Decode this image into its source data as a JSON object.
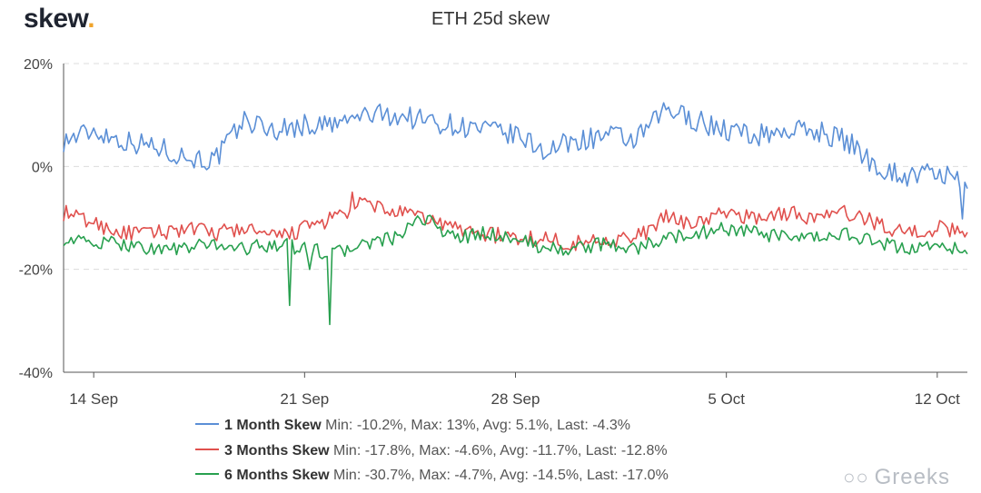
{
  "brand": {
    "logo_text": "skew",
    "logo_dot": "."
  },
  "watermark": {
    "text": "Greeks",
    "icon": "wechat-icon"
  },
  "chart_data": {
    "type": "line",
    "title": "ETH 25d skew",
    "xlabel": "",
    "ylabel": "",
    "x_range": [
      "2020-09-13",
      "2020-10-13"
    ],
    "ylim": [
      -40,
      20
    ],
    "y_ticks": [
      "20%",
      "0%",
      "-20%",
      "-40%"
    ],
    "y_tick_values": [
      20,
      0,
      -20,
      -40
    ],
    "x_ticks": [
      "14 Sep",
      "21 Sep",
      "28 Sep",
      "5 Oct",
      "12 Oct"
    ],
    "x_tick_dates": [
      "2020-09-14",
      "2020-09-21",
      "2020-09-28",
      "2020-10-05",
      "2020-10-12"
    ],
    "grid": "horizontal-dashed",
    "legend_position": "bottom",
    "series": [
      {
        "name": "1 Month Skew",
        "color": "#5b8fd6",
        "stats": "Min: -10.2%, Max: 13%, Avg: 5.1%, Last: -4.3%",
        "x": [
          "2020-09-13",
          "2020-09-14",
          "2020-09-15",
          "2020-09-16",
          "2020-09-17",
          "2020-09-18",
          "2020-09-19",
          "2020-09-20",
          "2020-09-21",
          "2020-09-22",
          "2020-09-23",
          "2020-09-24",
          "2020-09-25",
          "2020-09-26",
          "2020-09-27",
          "2020-09-28",
          "2020-09-29",
          "2020-09-30",
          "2020-10-01",
          "2020-10-02",
          "2020-10-03",
          "2020-10-04",
          "2020-10-05",
          "2020-10-06",
          "2020-10-07",
          "2020-10-08",
          "2020-10-09",
          "2020-10-10",
          "2020-10-11",
          "2020-10-12",
          "2020-10-13"
        ],
        "y": [
          5,
          7,
          5,
          4,
          2,
          1,
          9,
          7,
          8,
          8,
          10,
          10,
          9,
          8,
          7,
          6,
          3,
          5,
          6,
          5,
          11,
          9,
          7,
          6,
          7,
          7,
          5,
          0,
          -2,
          -1,
          -4.3
        ]
      },
      {
        "name": "3 Months Skew",
        "color": "#e0504d",
        "stats": "Min: -17.8%, Max: -4.6%, Avg: -11.7%, Last: -12.8%",
        "x": [
          "2020-09-13",
          "2020-09-14",
          "2020-09-15",
          "2020-09-16",
          "2020-09-17",
          "2020-09-18",
          "2020-09-19",
          "2020-09-20",
          "2020-09-21",
          "2020-09-22",
          "2020-09-23",
          "2020-09-24",
          "2020-09-25",
          "2020-09-26",
          "2020-09-27",
          "2020-09-28",
          "2020-09-29",
          "2020-09-30",
          "2020-10-01",
          "2020-10-02",
          "2020-10-03",
          "2020-10-04",
          "2020-10-05",
          "2020-10-06",
          "2020-10-07",
          "2020-10-08",
          "2020-10-09",
          "2020-10-10",
          "2020-10-11",
          "2020-10-12",
          "2020-10-13"
        ],
        "y": [
          -9,
          -11,
          -13,
          -13,
          -12,
          -13,
          -12,
          -14,
          -12,
          -10,
          -7,
          -9,
          -10,
          -12,
          -13,
          -14,
          -14,
          -15,
          -14,
          -14,
          -10,
          -11,
          -9,
          -10,
          -9,
          -10,
          -9,
          -11,
          -13,
          -12,
          -12.8
        ]
      },
      {
        "name": "6 Months Skew",
        "color": "#28a04f",
        "stats": "Min: -30.7%, Max: -4.7%, Avg: -14.5%, Last: -17.0%",
        "x": [
          "2020-09-13",
          "2020-09-14",
          "2020-09-15",
          "2020-09-16",
          "2020-09-17",
          "2020-09-18",
          "2020-09-19",
          "2020-09-20",
          "2020-09-21",
          "2020-09-22",
          "2020-09-23",
          "2020-09-24",
          "2020-09-25",
          "2020-09-26",
          "2020-09-27",
          "2020-09-28",
          "2020-09-29",
          "2020-09-30",
          "2020-10-01",
          "2020-10-02",
          "2020-10-03",
          "2020-10-04",
          "2020-10-05",
          "2020-10-06",
          "2020-10-07",
          "2020-10-08",
          "2020-10-09",
          "2020-10-10",
          "2020-10-11",
          "2020-10-12",
          "2020-10-13"
        ],
        "y": [
          -14,
          -15,
          -15,
          -16,
          -16,
          -15,
          -16,
          -15,
          -16,
          -17,
          -15,
          -14,
          -10,
          -14,
          -13,
          -14,
          -16,
          -16,
          -15,
          -16,
          -14,
          -13,
          -12,
          -13,
          -14,
          -14,
          -13,
          -15,
          -16,
          -15,
          -17.0
        ]
      }
    ]
  }
}
